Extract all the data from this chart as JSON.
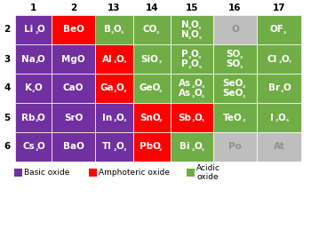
{
  "colors": {
    "basic": "#7030A0",
    "amphoteric": "#FF0000",
    "acidic": "#70AD47",
    "none": "#BEBEBE",
    "white": "#FFFFFF",
    "bg": "#FFFFFF"
  },
  "col_headers": [
    "1",
    "2",
    "13",
    "14",
    "15",
    "16",
    "17"
  ],
  "row_headers": [
    "2",
    "3",
    "4",
    "5",
    "6"
  ],
  "cells": [
    [
      {
        "text": "Li₂O",
        "color": "basic"
      },
      {
        "text": "BeO",
        "color": "amphoteric"
      },
      {
        "text": "B₂O₃",
        "color": "acidic"
      },
      {
        "text": "CO₂",
        "color": "acidic"
      },
      {
        "text": "N₂O₃\nN₂O₅",
        "color": "acidic"
      },
      {
        "text": "O",
        "color": "none"
      },
      {
        "text": "OF₂",
        "color": "acidic"
      }
    ],
    [
      {
        "text": "Na₂O",
        "color": "basic"
      },
      {
        "text": "MgO",
        "color": "basic"
      },
      {
        "text": "Al₂O₃",
        "color": "amphoteric"
      },
      {
        "text": "SiO₂",
        "color": "acidic"
      },
      {
        "text": "P₂O₃\nP₂O₅",
        "color": "acidic"
      },
      {
        "text": "SO₂\nSO₃",
        "color": "acidic"
      },
      {
        "text": "Cl₂O₇",
        "color": "acidic"
      }
    ],
    [
      {
        "text": "K₂O",
        "color": "basic"
      },
      {
        "text": "CaO",
        "color": "basic"
      },
      {
        "text": "Ga₂O₃",
        "color": "amphoteric"
      },
      {
        "text": "GeO₂",
        "color": "acidic"
      },
      {
        "text": "As₂O₃\nAs₂O₅",
        "color": "acidic"
      },
      {
        "text": "SeO₂\nSeO₃",
        "color": "acidic"
      },
      {
        "text": "Br₂O",
        "color": "acidic"
      }
    ],
    [
      {
        "text": "Rb₂O",
        "color": "basic"
      },
      {
        "text": "SrO",
        "color": "basic"
      },
      {
        "text": "In₂O₃",
        "color": "basic"
      },
      {
        "text": "SnO₂",
        "color": "amphoteric"
      },
      {
        "text": "Sb₂O₅",
        "color": "amphoteric"
      },
      {
        "text": "TeO₃",
        "color": "acidic"
      },
      {
        "text": "I₂O₅",
        "color": "acidic"
      }
    ],
    [
      {
        "text": "Cs₂O",
        "color": "basic"
      },
      {
        "text": "BaO",
        "color": "basic"
      },
      {
        "text": "Tl₂O₃",
        "color": "basic"
      },
      {
        "text": "PbO₂",
        "color": "amphoteric"
      },
      {
        "text": "Bi₂O₅",
        "color": "acidic"
      },
      {
        "text": "Po",
        "color": "none"
      },
      {
        "text": "At",
        "color": "none"
      }
    ]
  ],
  "legend": [
    {
      "color": "basic",
      "label": "Basic oxide"
    },
    {
      "color": "amphoteric",
      "label": "Amphoteric oxide"
    },
    {
      "color": "acidic",
      "label": "Acidic\noxide"
    }
  ]
}
